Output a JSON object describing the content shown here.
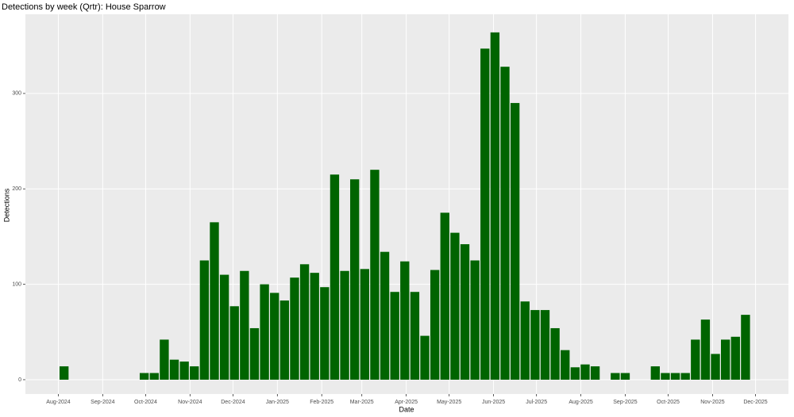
{
  "chart_data": {
    "type": "bar",
    "title": "Detections by week (Qrtr): House Sparrow",
    "x_label": "Date",
    "y_label": "Detections",
    "x": [
      4,
      60,
      67,
      74,
      81,
      88,
      95,
      102,
      109,
      116,
      123,
      130,
      137,
      144,
      151,
      158,
      165,
      172,
      179,
      186,
      193,
      200,
      207,
      214,
      221,
      228,
      235,
      242,
      249,
      256,
      263,
      270,
      277,
      284,
      291,
      298,
      305,
      312,
      319,
      326,
      333,
      340,
      347,
      354,
      361,
      368,
      375,
      389,
      396,
      417,
      424,
      431,
      438,
      445,
      452,
      459,
      466,
      473,
      480
    ],
    "values": [
      14,
      7,
      7,
      42,
      21,
      19,
      14,
      125,
      165,
      110,
      77,
      114,
      54,
      100,
      91,
      83,
      107,
      121,
      112,
      97,
      215,
      114,
      210,
      116,
      220,
      134,
      92,
      124,
      92,
      46,
      115,
      175,
      154,
      142,
      125,
      347,
      364,
      328,
      290,
      82,
      73,
      73,
      54,
      31,
      13,
      16,
      14,
      7,
      7,
      14,
      7,
      7,
      7,
      42,
      63,
      27,
      42,
      45,
      68
    ],
    "color": "#006400",
    "xlim": [
      -23,
      510
    ],
    "xticks": [
      {
        "value": 0,
        "label": "Aug-2024"
      },
      {
        "value": 31,
        "label": "Sep-2024"
      },
      {
        "value": 61,
        "label": "Oct-2024"
      },
      {
        "value": 92,
        "label": "Nov-2024"
      },
      {
        "value": 122,
        "label": "Dec-2024"
      },
      {
        "value": 153,
        "label": "Jan-2025"
      },
      {
        "value": 184,
        "label": "Feb-2025"
      },
      {
        "value": 212,
        "label": "Mar-2025"
      },
      {
        "value": 243,
        "label": "Apr-2025"
      },
      {
        "value": 273,
        "label": "May-2025"
      },
      {
        "value": 304,
        "label": "Jun-2025"
      },
      {
        "value": 334,
        "label": "Jul-2025"
      },
      {
        "value": 365,
        "label": "Aug-2025"
      },
      {
        "value": 396,
        "label": "Sep-2025"
      },
      {
        "value": 426,
        "label": "Oct-2025"
      },
      {
        "value": 457,
        "label": "Nov-2025"
      },
      {
        "value": 487,
        "label": "Dec-2025"
      }
    ],
    "ylim": [
      -15,
      383
    ],
    "yticks": [
      0,
      100,
      200,
      300
    ],
    "grid": true
  }
}
